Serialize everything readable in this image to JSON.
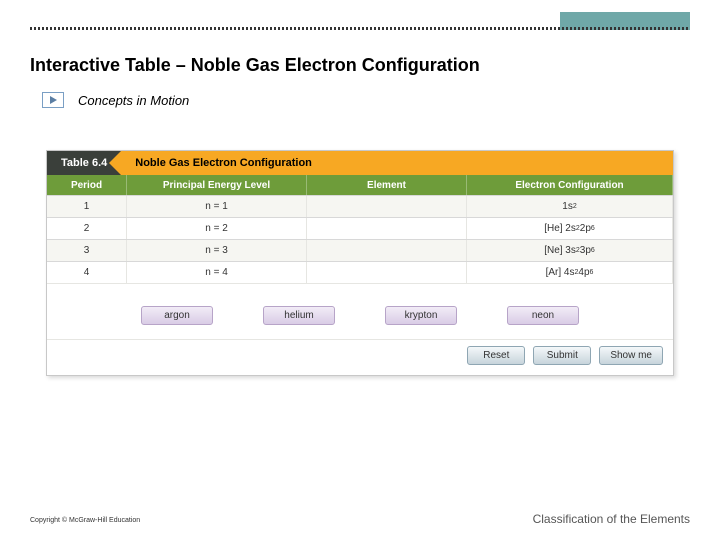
{
  "header": {
    "title": "Interactive Table – Noble Gas Electron Configuration",
    "concepts_label": "Concepts in Motion"
  },
  "table": {
    "tab_label": "Table 6.4",
    "caption": "Noble Gas Electron Configuration",
    "columns": [
      "Period",
      "Principal Energy Level",
      "Element",
      "Electron Configuration"
    ],
    "rows": [
      {
        "period": "1",
        "level": "n = 1",
        "element": "",
        "config_html": "1s<sup>2</sup>"
      },
      {
        "period": "2",
        "level": "n = 2",
        "element": "",
        "config_html": "[He] 2s<sup>2</sup> 2p<sup>6</sup>"
      },
      {
        "period": "3",
        "level": "n = 3",
        "element": "",
        "config_html": "[Ne] 3s<sup>2</sup> 3p<sup>6</sup>"
      },
      {
        "period": "4",
        "level": "n = 4",
        "element": "",
        "config_html": "[Ar] 4s<sup>2</sup> 4p<sup>6</sup>"
      }
    ],
    "draggables": [
      "argon",
      "helium",
      "krypton",
      "neon"
    ],
    "buttons": [
      "Reset",
      "Submit",
      "Show me"
    ]
  },
  "footer": {
    "copyright": "Copyright © McGraw-Hill Education",
    "section": "Classification of the Elements"
  },
  "colors": {
    "teal": "#6fa8a8",
    "orange": "#f7a823",
    "green": "#6e9c3a",
    "chip_border": "#b7a4c8",
    "btn_border": "#8fa6b3"
  }
}
